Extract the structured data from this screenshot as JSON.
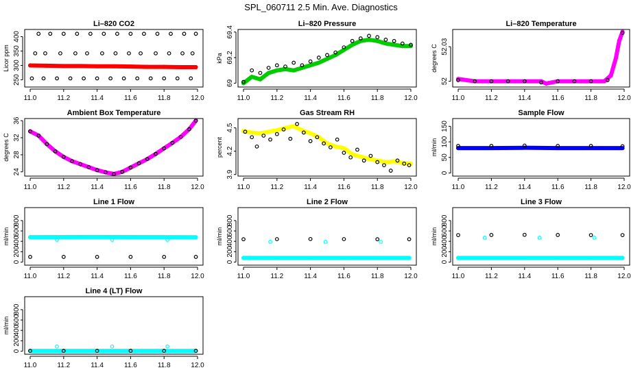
{
  "figure": {
    "title": "SPL_060711  2.5 Min. Ave. Diagnostics"
  },
  "chart_data": [
    {
      "id": "li820-co2",
      "type": "scatter",
      "title": "Li–820 CO2",
      "ylabel": "Licor ppm",
      "xlim": [
        11.0,
        12.0
      ],
      "xticks": [
        11.0,
        11.2,
        11.4,
        11.6,
        11.8,
        12.0
      ],
      "ylim": [
        225,
        425
      ],
      "yticks": [
        250,
        300,
        350,
        400
      ],
      "series": [
        {
          "name": "raw",
          "color": "#ff0000",
          "fill": true,
          "x": [
            11.0,
            11.1,
            11.2,
            11.3,
            11.4,
            11.5,
            11.6,
            11.7,
            11.8,
            11.9,
            11.99
          ],
          "y": [
            300,
            299,
            298,
            298,
            297,
            297,
            296,
            295,
            295,
            294,
            294
          ]
        },
        {
          "name": "avg",
          "color": "#000000",
          "fill": false,
          "x": [
            11.01,
            11.05,
            11.08,
            11.12,
            11.16,
            11.2,
            11.24,
            11.28,
            11.32,
            11.36,
            11.4,
            11.44,
            11.48,
            11.52,
            11.56,
            11.6,
            11.64,
            11.68,
            11.72,
            11.76,
            11.8,
            11.84,
            11.88,
            11.92,
            11.96,
            11.99,
            11.03,
            11.09,
            11.18,
            11.27,
            11.34,
            11.43,
            11.51,
            11.59,
            11.66,
            11.75,
            11.83,
            11.91,
            11.97
          ],
          "y": [
            255,
            410,
            255,
            410,
            255,
            410,
            255,
            410,
            255,
            410,
            255,
            410,
            255,
            410,
            255,
            410,
            255,
            410,
            255,
            410,
            255,
            410,
            255,
            410,
            255,
            410,
            342,
            342,
            342,
            342,
            342,
            342,
            342,
            342,
            342,
            342,
            342,
            342,
            342
          ]
        }
      ]
    },
    {
      "id": "li820-pressure",
      "type": "scatter",
      "title": "Li–820 Pressure",
      "ylabel": "kPa",
      "xlim": [
        11.0,
        12.0
      ],
      "xticks": [
        11.0,
        11.2,
        11.4,
        11.6,
        11.8,
        12.0
      ],
      "ylim": [
        68.97,
        69.42
      ],
      "yticks": [
        69.0,
        69.2,
        69.4
      ],
      "series": [
        {
          "name": "raw",
          "color": "#00cc00",
          "fill": true,
          "x": [
            11.0,
            11.05,
            11.1,
            11.15,
            11.2,
            11.25,
            11.3,
            11.35,
            11.4,
            11.45,
            11.5,
            11.55,
            11.6,
            11.65,
            11.7,
            11.75,
            11.8,
            11.85,
            11.9,
            11.95,
            12.0
          ],
          "y": [
            69.0,
            69.05,
            69.03,
            69.08,
            69.1,
            69.11,
            69.1,
            69.12,
            69.14,
            69.16,
            69.19,
            69.22,
            69.26,
            69.3,
            69.33,
            69.34,
            69.33,
            69.31,
            69.3,
            69.29,
            69.29
          ]
        },
        {
          "name": "avg",
          "color": "#000000",
          "fill": false,
          "x": [
            11.0,
            11.05,
            11.1,
            11.15,
            11.2,
            11.25,
            11.3,
            11.35,
            11.4,
            11.45,
            11.5,
            11.55,
            11.6,
            11.65,
            11.7,
            11.75,
            11.8,
            11.85,
            11.9,
            11.95,
            12.0
          ],
          "y": [
            69.01,
            69.1,
            69.08,
            69.12,
            69.14,
            69.13,
            69.16,
            69.14,
            69.17,
            69.2,
            69.22,
            69.24,
            69.28,
            69.33,
            69.35,
            69.37,
            69.36,
            69.34,
            69.33,
            69.31,
            69.3
          ]
        }
      ]
    },
    {
      "id": "li820-temperature",
      "type": "scatter",
      "title": "Li–820 Temperature",
      "ylabel": "degrees C",
      "xlim": [
        11.0,
        12.0
      ],
      "xticks": [
        11.0,
        11.2,
        11.4,
        11.6,
        11.8,
        12.0
      ],
      "ylim": [
        51.995,
        52.045
      ],
      "yticks": [
        52.0,
        52.03
      ],
      "series": [
        {
          "name": "raw",
          "color": "#ff00ff",
          "fill": true,
          "x": [
            11.0,
            11.1,
            11.2,
            11.3,
            11.4,
            11.5,
            11.53,
            11.6,
            11.7,
            11.8,
            11.88,
            11.92,
            11.95,
            11.97,
            11.99
          ],
          "y": [
            52.002,
            52.0,
            52.0,
            52.0,
            52.0,
            52.0,
            51.998,
            52.0,
            52.0,
            52.0,
            52.0,
            52.005,
            52.02,
            52.035,
            52.043
          ]
        },
        {
          "name": "avg",
          "color": "#000000",
          "fill": false,
          "x": [
            11.0,
            11.1,
            11.2,
            11.3,
            11.4,
            11.5,
            11.6,
            11.7,
            11.8,
            11.9,
            11.99
          ],
          "y": [
            52.001,
            52.0,
            52.0,
            52.0,
            52.0,
            51.999,
            52.0,
            52.0,
            52.0,
            52.001,
            52.042
          ]
        }
      ]
    },
    {
      "id": "ambient-box-temperature",
      "type": "scatter",
      "title": "Ambient Box Temperature",
      "ylabel": "degrees C",
      "xlim": [
        11.0,
        12.0
      ],
      "xticks": [
        11.0,
        11.2,
        11.4,
        11.6,
        11.8,
        12.0
      ],
      "ylim": [
        23.0,
        36.5
      ],
      "yticks": [
        24,
        28,
        32,
        36
      ],
      "series": [
        {
          "name": "raw",
          "color": "#ff00ff",
          "fill": true,
          "x": [
            11.0,
            11.05,
            11.1,
            11.15,
            11.2,
            11.25,
            11.3,
            11.35,
            11.4,
            11.45,
            11.5,
            11.55,
            11.6,
            11.65,
            11.7,
            11.75,
            11.8,
            11.85,
            11.9,
            11.95,
            11.99
          ],
          "y": [
            33.5,
            32.5,
            30.5,
            28.8,
            27.5,
            26.5,
            25.8,
            25.1,
            24.4,
            23.9,
            23.5,
            24.0,
            25.0,
            26.0,
            27.0,
            28.2,
            29.5,
            30.8,
            32.2,
            34.0,
            36.0
          ]
        },
        {
          "name": "avg",
          "color": "#000000",
          "fill": false,
          "x": [
            11.0,
            11.05,
            11.1,
            11.15,
            11.2,
            11.25,
            11.3,
            11.35,
            11.4,
            11.45,
            11.5,
            11.55,
            11.6,
            11.65,
            11.7,
            11.75,
            11.8,
            11.85,
            11.9,
            11.95,
            11.99
          ],
          "y": [
            33.5,
            32.5,
            30.5,
            28.8,
            27.5,
            26.5,
            25.8,
            25.1,
            24.4,
            23.9,
            23.5,
            24.0,
            25.0,
            26.0,
            27.0,
            28.2,
            29.5,
            30.8,
            32.2,
            34.0,
            36.0
          ]
        }
      ]
    },
    {
      "id": "gas-stream-rh",
      "type": "scatter",
      "title": "Gas Stream RH",
      "ylabel": "percent",
      "xlim": [
        11.0,
        12.0
      ],
      "xticks": [
        11.0,
        11.2,
        11.4,
        11.6,
        11.8,
        12.0
      ],
      "ylim": [
        3.88,
        4.62
      ],
      "yticks": [
        3.9,
        4.2,
        4.5
      ],
      "series": [
        {
          "name": "raw",
          "color": "#ffff00",
          "fill": true,
          "x": [
            11.0,
            11.05,
            11.1,
            11.15,
            11.2,
            11.25,
            11.3,
            11.35,
            11.4,
            11.45,
            11.5,
            11.55,
            11.6,
            11.65,
            11.7,
            11.75,
            11.8,
            11.85,
            11.9,
            11.95,
            12.0
          ],
          "y": [
            4.46,
            4.44,
            4.43,
            4.45,
            4.47,
            4.5,
            4.52,
            4.47,
            4.43,
            4.38,
            4.3,
            4.26,
            4.24,
            4.16,
            4.13,
            4.1,
            4.08,
            4.06,
            4.07,
            4.05,
            4.04
          ]
        },
        {
          "name": "avg",
          "color": "#000000",
          "fill": false,
          "x": [
            11.01,
            11.05,
            11.08,
            11.12,
            11.16,
            11.2,
            11.24,
            11.28,
            11.32,
            11.36,
            11.4,
            11.44,
            11.48,
            11.52,
            11.56,
            11.6,
            11.64,
            11.68,
            11.72,
            11.76,
            11.8,
            11.84,
            11.88,
            11.92,
            11.96,
            11.99
          ],
          "y": [
            4.45,
            4.38,
            4.26,
            4.4,
            4.35,
            4.42,
            4.48,
            4.36,
            4.55,
            4.44,
            4.33,
            4.38,
            4.3,
            4.25,
            4.35,
            4.18,
            4.12,
            4.22,
            4.08,
            4.14,
            4.06,
            4.02,
            3.95,
            4.08,
            4.04,
            4.02
          ]
        }
      ]
    },
    {
      "id": "sample-flow",
      "type": "scatter",
      "title": "Sample Flow",
      "ylabel": "ml/min",
      "xlim": [
        11.0,
        12.0
      ],
      "xticks": [
        11.0,
        11.2,
        11.4,
        11.6,
        11.8,
        12.0
      ],
      "ylim": [
        -10,
        175
      ],
      "yticks": [
        0,
        50,
        100,
        150
      ],
      "series": [
        {
          "name": "raw",
          "color": "#0000ff",
          "fill": true,
          "x": [
            11.0,
            11.2,
            11.4,
            11.6,
            11.8,
            11.99
          ],
          "y": [
            80,
            80,
            81,
            80,
            80,
            80
          ]
        },
        {
          "name": "avg",
          "color": "#000000",
          "fill": false,
          "x": [
            11.0,
            11.2,
            11.4,
            11.6,
            11.8,
            11.99
          ],
          "y": [
            87,
            87,
            88,
            87,
            87,
            86
          ]
        }
      ]
    },
    {
      "id": "line-1-flow",
      "type": "scatter",
      "title": "Line 1 Flow",
      "ylabel": "ml/min",
      "xlim": [
        11.0,
        12.0
      ],
      "xticks": [
        11.0,
        11.2,
        11.4,
        11.6,
        11.8,
        12.0
      ],
      "ylim": [
        -60,
        1050
      ],
      "yticks": [
        0,
        200,
        400,
        600,
        800
      ],
      "series": [
        {
          "name": "raw",
          "color": "#00ffff",
          "fill": true,
          "x": [
            11.0,
            11.2,
            11.4,
            11.6,
            11.8,
            11.99
          ],
          "y": [
            480,
            482,
            484,
            482,
            480,
            478
          ]
        },
        {
          "name": "avg",
          "color": "#000000",
          "fill": false,
          "x": [
            11.0,
            11.2,
            11.4,
            11.6,
            11.8,
            11.99
          ],
          "y": [
            100,
            100,
            100,
            100,
            100,
            100
          ]
        },
        {
          "name": "spikes",
          "color": "#00ffff",
          "fill": false,
          "x": [
            11.16,
            11.49,
            11.82
          ],
          "y": [
            430,
            430,
            430
          ]
        }
      ]
    },
    {
      "id": "line-2-flow",
      "type": "scatter",
      "title": "Line 2 Flow",
      "ylabel": "ml/min",
      "xlim": [
        11.0,
        12.0
      ],
      "xticks": [
        11.0,
        11.2,
        11.4,
        11.6,
        11.8,
        12.0
      ],
      "ylim": [
        -60,
        1050
      ],
      "yticks": [
        0,
        200,
        400,
        600,
        800
      ],
      "series": [
        {
          "name": "raw",
          "color": "#00ffff",
          "fill": true,
          "x": [
            11.0,
            11.2,
            11.4,
            11.6,
            11.8,
            11.99
          ],
          "y": [
            80,
            80,
            80,
            80,
            80,
            80
          ]
        },
        {
          "name": "avg",
          "color": "#000000",
          "fill": false,
          "x": [
            11.0,
            11.2,
            11.4,
            11.6,
            11.8,
            11.99
          ],
          "y": [
            440,
            442,
            444,
            442,
            440,
            440
          ]
        },
        {
          "name": "spikes",
          "color": "#00ffff",
          "fill": false,
          "x": [
            11.16,
            11.49,
            11.82
          ],
          "y": [
            390,
            390,
            390
          ]
        }
      ]
    },
    {
      "id": "line-3-flow",
      "type": "scatter",
      "title": "Line 3 Flow",
      "ylabel": "ml/min",
      "xlim": [
        11.0,
        12.0
      ],
      "xticks": [
        11.0,
        11.2,
        11.4,
        11.6,
        11.8,
        12.0
      ],
      "ylim": [
        -60,
        1050
      ],
      "yticks": [
        0,
        200,
        400,
        600,
        800
      ],
      "series": [
        {
          "name": "raw",
          "color": "#00ffff",
          "fill": true,
          "x": [
            11.0,
            11.2,
            11.4,
            11.6,
            11.8,
            11.99
          ],
          "y": [
            80,
            80,
            80,
            80,
            80,
            80
          ]
        },
        {
          "name": "avg",
          "color": "#000000",
          "fill": false,
          "x": [
            11.0,
            11.2,
            11.4,
            11.6,
            11.8,
            11.99
          ],
          "y": [
            520,
            522,
            525,
            522,
            520,
            520
          ]
        },
        {
          "name": "spikes",
          "color": "#00ffff",
          "fill": false,
          "x": [
            11.16,
            11.49,
            11.82
          ],
          "y": [
            470,
            470,
            470
          ]
        }
      ]
    },
    {
      "id": "line-4-lt-flow",
      "type": "scatter",
      "title": "Line 4 (LT) Flow",
      "ylabel": "ml/min",
      "xlim": [
        11.0,
        12.0
      ],
      "xticks": [
        11.0,
        11.2,
        11.4,
        11.6,
        11.8,
        12.0
      ],
      "ylim": [
        -60,
        1050
      ],
      "yticks": [
        0,
        200,
        400,
        600,
        800
      ],
      "series": [
        {
          "name": "raw",
          "color": "#00ffff",
          "fill": true,
          "x": [
            11.0,
            11.2,
            11.4,
            11.6,
            11.8,
            11.99
          ],
          "y": [
            5,
            5,
            5,
            5,
            5,
            5
          ]
        },
        {
          "name": "avg",
          "color": "#000000",
          "fill": false,
          "x": [
            11.0,
            11.2,
            11.4,
            11.6,
            11.8,
            11.99
          ],
          "y": [
            5,
            5,
            5,
            5,
            5,
            5
          ]
        },
        {
          "name": "spikes",
          "color": "#00ffff",
          "fill": false,
          "x": [
            11.16,
            11.49,
            11.82
          ],
          "y": [
            90,
            90,
            90
          ]
        }
      ]
    }
  ]
}
